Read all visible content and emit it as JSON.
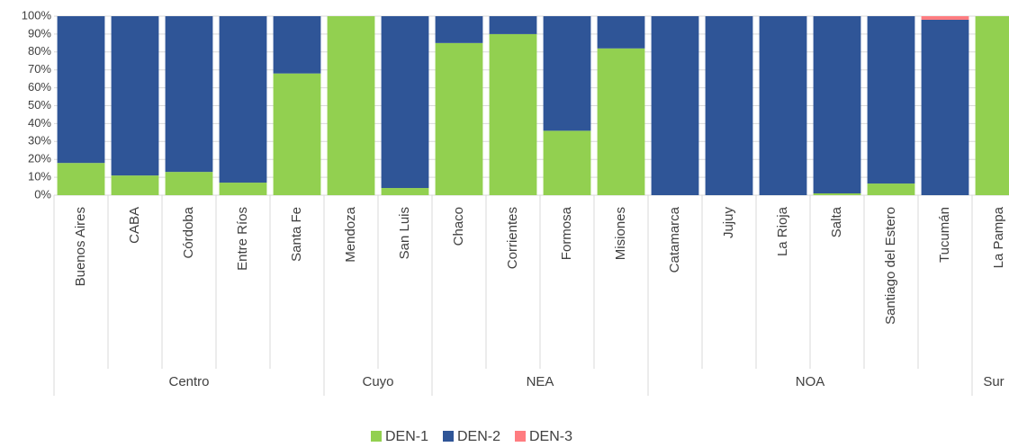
{
  "chart_data": {
    "type": "stacked-bar-percent",
    "groups": [
      {
        "label": "Centro",
        "categories": [
          "Buenos Aires",
          "CABA",
          "Córdoba",
          "Entre Ríos",
          "Santa Fe"
        ]
      },
      {
        "label": "Cuyo",
        "categories": [
          "Mendoza",
          "San Luis"
        ]
      },
      {
        "label": "NEA",
        "categories": [
          "Chaco",
          "Corrientes",
          "Formosa",
          "Misiones"
        ]
      },
      {
        "label": "NOA",
        "categories": [
          "Catamarca",
          "Jujuy",
          "La Rioja",
          "Salta",
          "Santiago del Estero",
          "Tucumán"
        ]
      },
      {
        "label": "Sur",
        "categories": [
          "La Pampa"
        ]
      }
    ],
    "series": [
      {
        "name": "DEN-1",
        "color": "#92d050",
        "values": [
          18,
          11,
          13,
          7,
          68,
          100,
          4,
          85,
          90,
          36,
          82,
          0,
          0,
          0,
          1,
          6.5,
          0,
          100
        ]
      },
      {
        "name": "DEN-2",
        "color": "#2f5597",
        "values": [
          82,
          89,
          87,
          93,
          32,
          0,
          96,
          15,
          10,
          64,
          18,
          100,
          100,
          100,
          99,
          93.5,
          98,
          0
        ]
      },
      {
        "name": "DEN-3",
        "color": "#ff7c80",
        "values": [
          0,
          0,
          0,
          0,
          0,
          0,
          0,
          0,
          0,
          0,
          0,
          0,
          0,
          0,
          0,
          0,
          2,
          0
        ]
      }
    ],
    "ylim": [
      0,
      100
    ],
    "yticks": [
      {
        "value": 0,
        "label": "0%"
      },
      {
        "value": 10,
        "label": "10%"
      },
      {
        "value": 20,
        "label": "20%"
      },
      {
        "value": 30,
        "label": "30%"
      },
      {
        "value": 40,
        "label": "40%"
      },
      {
        "value": 50,
        "label": "50%"
      },
      {
        "value": 60,
        "label": "60%"
      },
      {
        "value": 70,
        "label": "70%"
      },
      {
        "value": 80,
        "label": "80%"
      },
      {
        "value": 90,
        "label": "90%"
      },
      {
        "value": 100,
        "label": "100%"
      }
    ],
    "grid": true,
    "legend": "bottom"
  }
}
